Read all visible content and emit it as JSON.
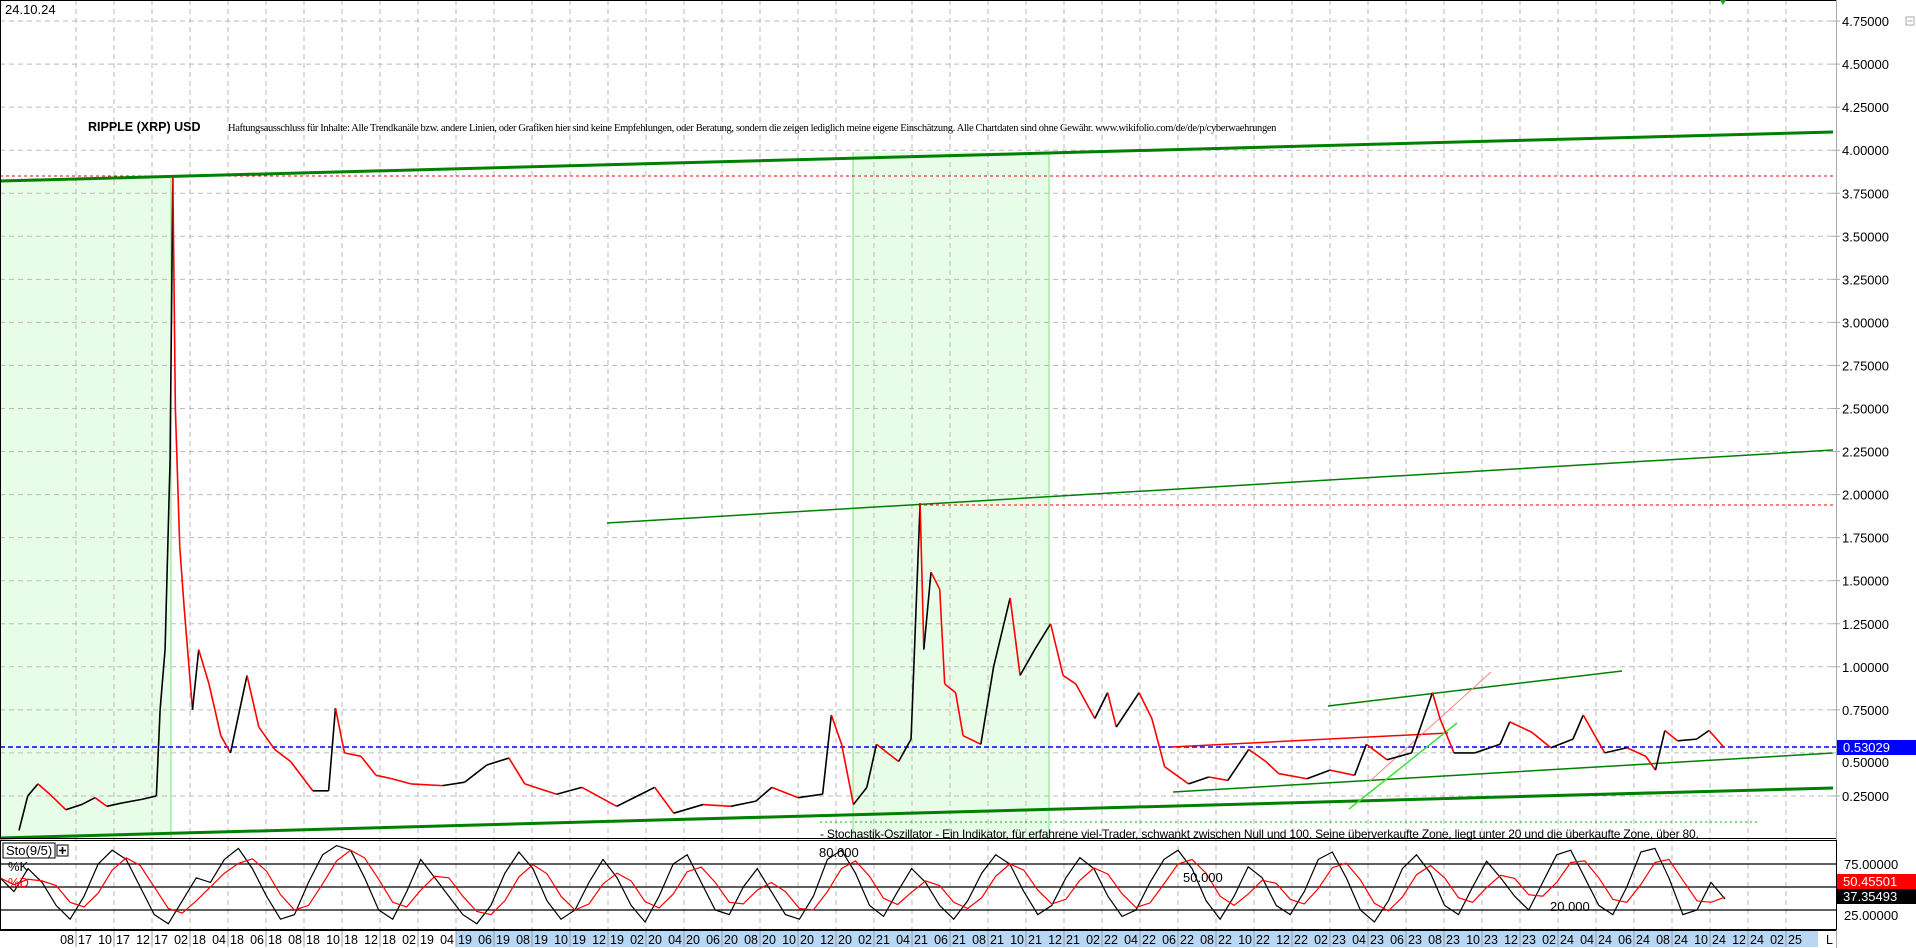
{
  "header": {
    "date": "24.10.24",
    "title": "RIPPLE (XRP) USD",
    "disclaimer": "Haftungsausschluss für Inhalte: Alle Trendkanäle bzw. andere Linien, oder Grafiken hier sind keine Empfehlungen, oder Beratung, sondern die zeigen lediglich meine eigene Einschätzung. Alle Chartdaten sind ohne Gewähr.  www.wikifolio.com/de/de/p/cyberwaehrungen"
  },
  "indicator": {
    "name": "Sto(9/5)",
    "k_label": "%K",
    "d_label": "%D",
    "note": "- Stochastik-Oszillator - Ein Indikator, für erfahrene viel-Trader, schwankt zwischen Null und 100. Seine überverkaufte Zone, liegt unter 20 und die überkaufte Zone, über 80.",
    "level_labels": [
      "80.000",
      "50.000",
      "20.000"
    ],
    "axis_labels": [
      "75.00000",
      "25.00000"
    ],
    "k_value": "37.35493",
    "d_value": "50.45501",
    "expand_icon": "plus-box-icon"
  },
  "colors": {
    "up": "#000000",
    "down": "#ff0000",
    "trend": "#008000",
    "highlight": "#e8fde8",
    "current_price": "#0000ff",
    "date_highlight": "#b7d7f5"
  },
  "chart_data": [
    {
      "type": "line",
      "title": "RIPPLE (XRP) USD",
      "ylim": [
        0,
        4.85
      ],
      "y_ticks": [
        "0.25000",
        "0.50000",
        "0.75000",
        "1.00000",
        "1.25000",
        "1.50000",
        "1.75000",
        "2.00000",
        "2.25000",
        "2.50000",
        "2.75000",
        "3.00000",
        "3.25000",
        "3.50000",
        "3.75000",
        "4.00000",
        "4.25000",
        "4.50000",
        "4.75000"
      ],
      "current_price": "0.53029",
      "grid": true,
      "x_ticks": [
        "08 17",
        "10 17",
        "12 17",
        "02 18",
        "04 18",
        "06 18",
        "08 18",
        "10 18",
        "12 18",
        "02 19",
        "04 19",
        "06 19",
        "08 19",
        "10 19",
        "12 19",
        "02 20",
        "04 20",
        "06 20",
        "08 20",
        "10 20",
        "12 20",
        "02 21",
        "04 21",
        "06 21",
        "08 21",
        "10 21",
        "12 21",
        "02 22",
        "04 22",
        "06 22",
        "08 22",
        "10 22",
        "12 22",
        "02 23",
        "04 23",
        "06 23",
        "08 23",
        "10 23",
        "12 23",
        "02 24",
        "04 24",
        "06 24",
        "08 24",
        "10 24",
        "12 24",
        "02 25"
      ],
      "end_label": "L",
      "series": [
        {
          "points": [
            [
              "2017-05-01",
              0.05
            ],
            [
              "2017-05-15",
              0.25
            ],
            [
              "2017-06-01",
              0.32
            ],
            [
              "2017-06-20",
              0.26
            ],
            [
              "2017-07-15",
              0.17
            ],
            [
              "2017-08-10",
              0.2
            ],
            [
              "2017-09-01",
              0.24
            ],
            [
              "2017-09-20",
              0.19
            ],
            [
              "2017-10-15",
              0.21
            ],
            [
              "2017-11-15",
              0.23
            ],
            [
              "2017-12-08",
              0.25
            ],
            [
              "2017-12-14",
              0.75
            ],
            [
              "2017-12-22",
              1.1
            ],
            [
              "2017-12-30",
              2.2
            ],
            [
              "2018-01-04",
              3.84
            ],
            [
              "2018-01-08",
              2.5
            ],
            [
              "2018-01-15",
              1.7
            ],
            [
              "2018-01-22",
              1.35
            ],
            [
              "2018-02-05",
              0.75
            ],
            [
              "2018-02-15",
              1.1
            ],
            [
              "2018-03-01",
              0.9
            ],
            [
              "2018-03-20",
              0.6
            ],
            [
              "2018-04-05",
              0.5
            ],
            [
              "2018-05-01",
              0.95
            ],
            [
              "2018-05-20",
              0.65
            ],
            [
              "2018-06-15",
              0.52
            ],
            [
              "2018-07-10",
              0.45
            ],
            [
              "2018-08-15",
              0.28
            ],
            [
              "2018-09-10",
              0.28
            ],
            [
              "2018-09-21",
              0.76
            ],
            [
              "2018-10-05",
              0.5
            ],
            [
              "2018-11-01",
              0.48
            ],
            [
              "2018-11-25",
              0.37
            ],
            [
              "2018-12-20",
              0.35
            ],
            [
              "2019-01-20",
              0.32
            ],
            [
              "2019-03-10",
              0.31
            ],
            [
              "2019-04-15",
              0.33
            ],
            [
              "2019-05-20",
              0.43
            ],
            [
              "2019-06-25",
              0.47
            ],
            [
              "2019-07-20",
              0.32
            ],
            [
              "2019-09-10",
              0.26
            ],
            [
              "2019-10-20",
              0.3
            ],
            [
              "2019-12-15",
              0.19
            ],
            [
              "2020-02-15",
              0.3
            ],
            [
              "2020-03-15",
              0.15
            ],
            [
              "2020-05-01",
              0.2
            ],
            [
              "2020-06-15",
              0.19
            ],
            [
              "2020-07-25",
              0.22
            ],
            [
              "2020-08-20",
              0.3
            ],
            [
              "2020-10-01",
              0.24
            ],
            [
              "2020-11-10",
              0.26
            ],
            [
              "2020-11-24",
              0.72
            ],
            [
              "2020-12-10",
              0.55
            ],
            [
              "2020-12-29",
              0.2
            ],
            [
              "2021-01-20",
              0.3
            ],
            [
              "2021-02-05",
              0.55
            ],
            [
              "2021-03-10",
              0.45
            ],
            [
              "2021-03-30",
              0.58
            ],
            [
              "2021-04-14",
              1.95
            ],
            [
              "2021-04-20",
              1.1
            ],
            [
              "2021-05-01",
              1.55
            ],
            [
              "2021-05-15",
              1.45
            ],
            [
              "2021-05-23",
              0.9
            ],
            [
              "2021-06-10",
              0.85
            ],
            [
              "2021-06-22",
              0.6
            ],
            [
              "2021-07-20",
              0.55
            ],
            [
              "2021-08-10",
              1.0
            ],
            [
              "2021-09-06",
              1.4
            ],
            [
              "2021-09-22",
              0.95
            ],
            [
              "2021-10-15",
              1.1
            ],
            [
              "2021-11-10",
              1.25
            ],
            [
              "2021-11-30",
              0.95
            ],
            [
              "2021-12-20",
              0.9
            ],
            [
              "2022-01-20",
              0.7
            ],
            [
              "2022-02-10",
              0.85
            ],
            [
              "2022-02-24",
              0.65
            ],
            [
              "2022-03-30",
              0.85
            ],
            [
              "2022-04-20",
              0.7
            ],
            [
              "2022-05-10",
              0.42
            ],
            [
              "2022-06-18",
              0.32
            ],
            [
              "2022-07-20",
              0.36
            ],
            [
              "2022-08-20",
              0.34
            ],
            [
              "2022-09-23",
              0.52
            ],
            [
              "2022-10-20",
              0.45
            ],
            [
              "2022-11-10",
              0.38
            ],
            [
              "2022-12-25",
              0.35
            ],
            [
              "2023-02-01",
              0.4
            ],
            [
              "2023-03-10",
              0.37
            ],
            [
              "2023-03-29",
              0.55
            ],
            [
              "2023-05-01",
              0.46
            ],
            [
              "2023-06-10",
              0.5
            ],
            [
              "2023-07-13",
              0.85
            ],
            [
              "2023-07-25",
              0.7
            ],
            [
              "2023-08-17",
              0.5
            ],
            [
              "2023-09-20",
              0.5
            ],
            [
              "2023-10-30",
              0.55
            ],
            [
              "2023-11-15",
              0.68
            ],
            [
              "2023-12-20",
              0.62
            ],
            [
              "2024-01-20",
              0.53
            ],
            [
              "2024-02-25",
              0.58
            ],
            [
              "2024-03-11",
              0.72
            ],
            [
              "2024-04-15",
              0.5
            ],
            [
              "2024-05-20",
              0.53
            ],
            [
              "2024-06-20",
              0.48
            ],
            [
              "2024-07-05",
              0.4
            ],
            [
              "2024-07-20",
              0.63
            ],
            [
              "2024-08-10",
              0.57
            ],
            [
              "2024-09-10",
              0.58
            ],
            [
              "2024-09-30",
              0.63
            ],
            [
              "2024-10-24",
              0.53
            ]
          ]
        }
      ]
    },
    {
      "type": "line",
      "title": "Sto(9/5)",
      "ylim": [
        0,
        100
      ],
      "levels": [
        75,
        50,
        25
      ],
      "series": [
        {
          "name": "%K",
          "values": [
            60,
            45,
            70,
            55,
            30,
            15,
            40,
            75,
            90,
            80,
            50,
            20,
            10,
            35,
            60,
            55,
            80,
            92,
            70,
            40,
            15,
            20,
            55,
            85,
            95,
            90,
            60,
            25,
            15,
            45,
            80,
            60,
            40,
            20,
            10,
            30,
            65,
            88,
            70,
            35,
            15,
            25,
            55,
            80,
            60,
            30,
            12,
            40,
            75,
            85,
            55,
            25,
            20,
            50,
            70,
            45,
            20,
            15,
            40,
            80,
            90,
            65,
            30,
            18,
            45,
            70,
            55,
            30,
            15,
            35,
            65,
            85,
            75,
            45,
            20,
            30,
            60,
            82,
            70,
            40,
            18,
            25,
            55,
            80,
            90,
            70,
            35,
            15,
            40,
            72,
            60,
            30,
            20,
            45,
            80,
            88,
            60,
            25,
            12,
            35,
            70,
            85,
            65,
            30,
            20,
            50,
            78,
            60,
            40,
            25,
            55,
            85,
            90,
            60,
            30,
            20,
            50,
            88,
            92,
            60,
            20,
            25,
            55,
            37
          ]
        },
        {
          "name": "%D"
        }
      ]
    }
  ]
}
